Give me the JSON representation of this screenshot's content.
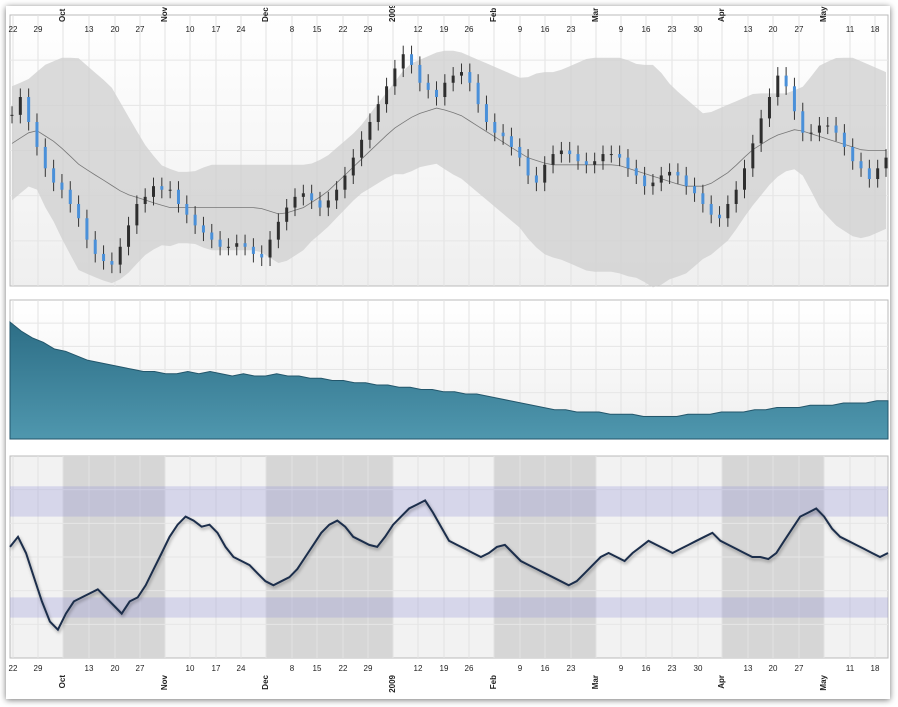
{
  "chart_data": [
    {
      "type": "candlestick",
      "panel": "price",
      "overlays": [
        "Bollinger Bands (gray band)",
        "moving average (thin line)"
      ],
      "x_tick_labels": [
        "22",
        "29",
        "Oct",
        "13",
        "20",
        "27",
        "Nov",
        "10",
        "17",
        "24",
        "Dec",
        "8",
        "15",
        "22",
        "29",
        "2009",
        "12",
        "19",
        "26",
        "Feb",
        "9",
        "16",
        "23",
        "Mar",
        "9",
        "16",
        "23",
        "30",
        "Apr",
        "13",
        "20",
        "27",
        "May",
        "11",
        "18"
      ],
      "month_labels": [
        "Oct",
        "Nov",
        "Dec",
        "2009",
        "Feb",
        "Mar",
        "Apr",
        "May"
      ],
      "close": [
        64.0,
        66.5,
        63.0,
        59.5,
        56.5,
        54.5,
        53.5,
        51.5,
        49.5,
        46.5,
        44.5,
        43.5,
        43.0,
        45.5,
        48.5,
        51.5,
        52.5,
        54.0,
        53.5,
        53.5,
        51.5,
        50.0,
        48.5,
        47.5,
        46.5,
        45.5,
        45.5,
        46.0,
        45.5,
        44.5,
        44.0,
        46.5,
        49.0,
        51.0,
        52.5,
        53.0,
        52.0,
        51.0,
        52.0,
        53.5,
        55.5,
        58.0,
        60.5,
        63.0,
        65.5,
        68.0,
        70.5,
        72.5,
        71.0,
        68.5,
        67.5,
        66.5,
        68.5,
        69.5,
        70.0,
        68.5,
        65.5,
        63.0,
        61.5,
        61.0,
        59.5,
        58.0,
        55.5,
        54.5,
        57.0,
        58.5,
        59.0,
        58.5,
        57.5,
        57.0,
        57.5,
        58.5,
        58.5,
        58.0,
        56.5,
        55.5,
        54.0,
        54.5,
        55.5,
        56.0,
        55.5,
        54.0,
        53.0,
        51.5,
        50.0,
        49.5,
        51.5,
        53.5,
        56.5,
        60.0,
        63.5,
        66.5,
        69.5,
        68.0,
        64.5,
        61.5,
        61.5,
        62.5,
        62.5,
        61.5,
        59.5,
        57.5,
        56.5,
        55.0,
        56.5,
        58.0
      ],
      "bollinger_upper_approx": [
        68,
        69,
        71,
        72,
        72,
        70,
        68,
        64,
        60,
        57,
        56,
        56,
        57,
        57,
        57,
        57,
        57,
        57,
        57,
        58,
        60,
        62,
        65,
        68,
        71,
        72,
        73,
        73,
        72,
        71,
        70,
        69,
        70,
        70,
        71,
        72,
        72,
        72,
        71,
        71,
        68,
        66,
        64,
        65,
        66,
        67,
        67,
        67,
        68,
        71,
        72,
        72,
        71,
        70
      ],
      "moving_average_approx": [
        60,
        62,
        60,
        57,
        55,
        53,
        52,
        51,
        51,
        51,
        51,
        51,
        50,
        51,
        53,
        56,
        59,
        62,
        64,
        65,
        64,
        62,
        60,
        58,
        57,
        57,
        57,
        57,
        56,
        55,
        54,
        54,
        56,
        59,
        61,
        62,
        61,
        60,
        59,
        59
      ],
      "ylim": [
        40,
        78
      ],
      "grid": true
    },
    {
      "type": "area",
      "panel": "middle-indicator",
      "values": [
        92,
        88,
        85,
        83,
        80,
        79,
        77,
        75,
        74,
        73,
        72,
        71,
        70,
        70,
        69,
        69,
        70,
        69,
        70,
        69,
        68,
        69,
        68,
        68,
        69,
        68,
        68,
        67,
        67,
        66,
        66,
        65,
        65,
        64,
        64,
        63,
        63,
        62,
        62,
        61,
        61,
        60,
        60,
        59,
        58,
        57,
        56,
        55,
        54,
        53,
        53,
        52,
        52,
        52,
        51,
        51,
        51,
        50,
        50,
        50,
        50,
        51,
        51,
        51,
        52,
        52,
        52,
        53,
        53,
        54,
        54,
        54,
        55,
        55,
        55,
        56,
        56,
        56,
        57,
        57
      ],
      "ylim": [
        40,
        100
      ],
      "color": "#4f97ae",
      "grid": true
    },
    {
      "type": "line",
      "panel": "oscillator",
      "values": [
        55,
        60,
        52,
        40,
        28,
        18,
        14,
        22,
        28,
        30,
        32,
        34,
        30,
        26,
        22,
        28,
        30,
        36,
        44,
        52,
        60,
        66,
        70,
        68,
        65,
        66,
        62,
        55,
        50,
        48,
        46,
        42,
        38,
        36,
        38,
        40,
        44,
        50,
        56,
        62,
        66,
        68,
        65,
        60,
        58,
        56,
        55,
        60,
        66,
        70,
        74,
        76,
        78,
        72,
        65,
        58,
        56,
        54,
        52,
        50,
        52,
        55,
        56,
        52,
        48,
        46,
        44,
        42,
        40,
        38,
        36,
        38,
        42,
        46,
        50,
        52,
        50,
        48,
        52,
        55,
        58,
        56,
        54,
        52,
        54,
        56,
        58,
        60,
        62,
        58,
        56,
        54,
        52,
        50,
        50,
        49,
        52,
        58,
        64,
        70,
        72,
        74,
        70,
        64,
        60,
        58,
        56,
        54,
        52,
        50,
        52
      ],
      "upper_band": [
        70,
        85
      ],
      "lower_band": [
        20,
        30
      ],
      "ylim": [
        0,
        100
      ],
      "color": "#1b2e4b",
      "grid": true
    }
  ]
}
